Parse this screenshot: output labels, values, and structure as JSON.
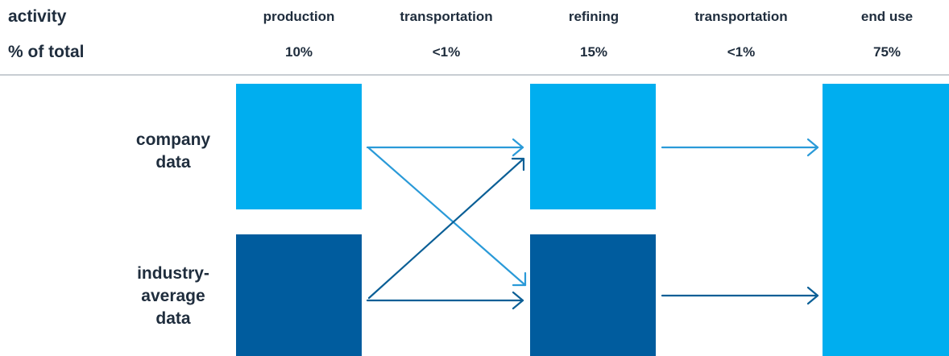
{
  "header": {
    "activity_label": "activity",
    "percent_label": "% of total",
    "stages": [
      {
        "name": "production",
        "percent": "10%"
      },
      {
        "name": "transportation",
        "percent": "<1%"
      },
      {
        "name": "refining",
        "percent": "15%"
      },
      {
        "name": "transportation",
        "percent": "<1%"
      },
      {
        "name": "end use",
        "percent": "75%"
      }
    ]
  },
  "rows": {
    "company": "company data",
    "industry": "industry-average data"
  },
  "colors": {
    "company": "#00aeef",
    "industry": "#005c9e",
    "company_arrow": "#2a9ad8",
    "industry_arrow": "#0b5f96",
    "text": "#1f2d3d",
    "divider": "#c8cdd2"
  }
}
